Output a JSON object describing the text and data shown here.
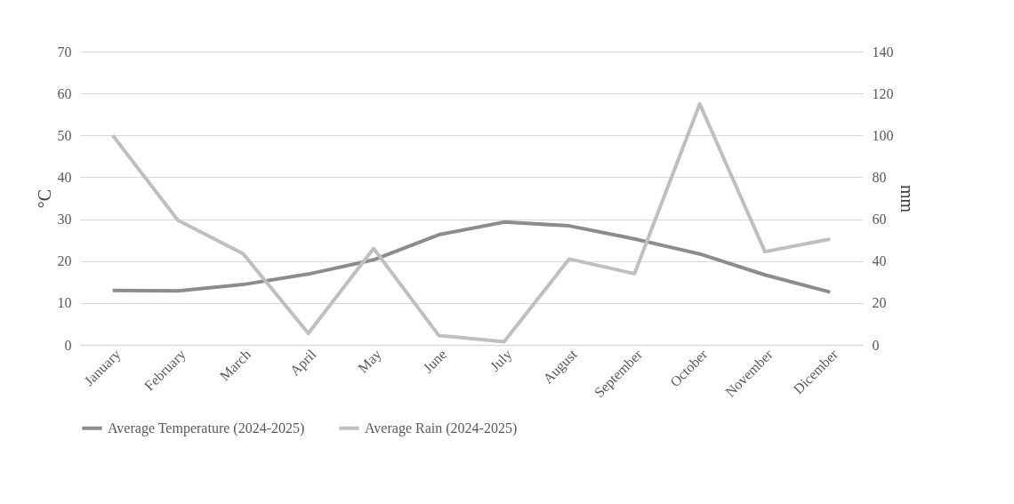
{
  "chart_data": {
    "type": "line",
    "categories": [
      "January",
      "February",
      "March",
      "April",
      "May",
      "June",
      "July",
      "August",
      "September",
      "October",
      "November",
      "Dicember"
    ],
    "series": [
      {
        "name": "Average Temperature (2024-2025)",
        "color": "#8c8c8c",
        "values": [
          13,
          12.9,
          14.4,
          16.9,
          20.3,
          26.3,
          29.3,
          28.4,
          25.3,
          21.7,
          16.7,
          12.6
        ]
      },
      {
        "name": "Average Rain (2024-2025)",
        "color": "#bfbfbf",
        "axis": "y2",
        "values": [
          100,
          59.5,
          43.5,
          5.5,
          46,
          4.5,
          1.5,
          41,
          34,
          115,
          44.5,
          50.5
        ]
      }
    ],
    "ylabel": "°C",
    "y2label": "mm",
    "ylim": [
      0,
      70
    ],
    "yticks": [
      0,
      10,
      20,
      30,
      40,
      50,
      60,
      70
    ],
    "y2lim": [
      0,
      140
    ],
    "y2ticks": [
      0,
      20,
      40,
      60,
      80,
      100,
      120,
      140
    ],
    "grid": "y",
    "legend": "bottom",
    "marker": "none",
    "line_style": "solid"
  }
}
